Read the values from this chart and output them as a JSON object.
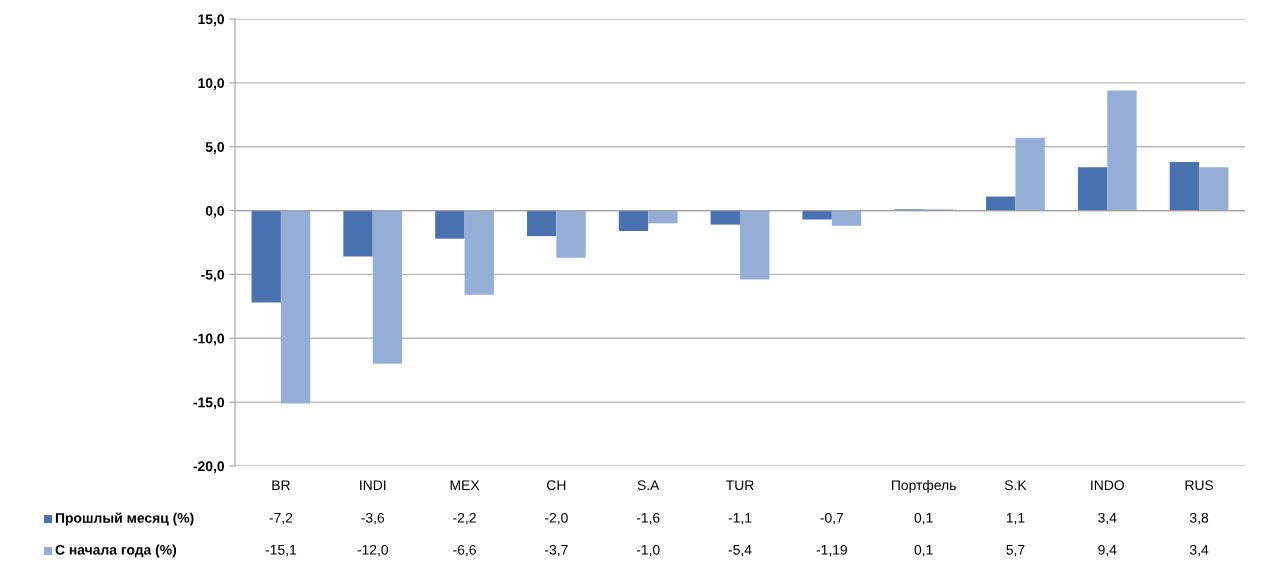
{
  "chart_data": {
    "type": "bar",
    "categories": [
      "BR",
      "INDI",
      "MEX",
      "CH",
      "S.A",
      "TUR",
      null,
      "Портфель",
      "S.K",
      "INDO",
      "RUS"
    ],
    "series": [
      {
        "name": "Прошлый месяц (%)",
        "color": "#4a72b0",
        "values": [
          -7.2,
          -3.6,
          -2.2,
          -2.0,
          -1.6,
          -1.1,
          -0.7,
          0.1,
          1.1,
          3.4,
          3.8
        ],
        "value_labels": [
          "-7,2",
          "-3,6",
          "-2,2",
          "-2,0",
          "-1,6",
          "-1,1",
          "-0,7",
          "0,1",
          "1,1",
          "3,4",
          "3,8"
        ]
      },
      {
        "name": "С начала года (%)",
        "color": "#95aed6",
        "values": [
          -15.1,
          -12.0,
          -6.6,
          -3.7,
          -1.0,
          -5.4,
          -1.19,
          0.1,
          5.7,
          9.4,
          3.4
        ],
        "value_labels": [
          "-15,1",
          "-12,0",
          "-6,6",
          "-3,7",
          "-1,0",
          "-5,4",
          "-1,19",
          "0,1",
          "5,7",
          "9,4",
          "3,4"
        ]
      }
    ],
    "ylim": [
      -20,
      15
    ],
    "yticks": [
      {
        "value": -20,
        "label": "-20,0"
      },
      {
        "value": -15,
        "label": "-15,0"
      },
      {
        "value": -10,
        "label": "-10,0"
      },
      {
        "value": -5,
        "label": "-5,0"
      },
      {
        "value": 0,
        "label": "0,0"
      },
      {
        "value": 5,
        "label": "5,0"
      },
      {
        "value": 10,
        "label": "10,0"
      },
      {
        "value": 15,
        "label": "15,0"
      }
    ],
    "grid": "y",
    "legend": "bottom left"
  }
}
